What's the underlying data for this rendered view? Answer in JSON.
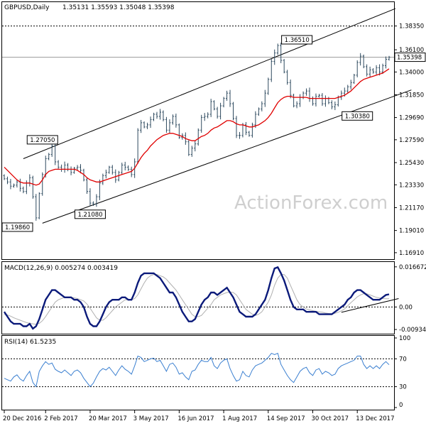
{
  "header": {
    "symbol": "GBPUSD,Daily",
    "ohlc": "1.35131 1.35593 1.35048 1.35398"
  },
  "watermark": "ActionForex.com",
  "chart_data": [
    {
      "type": "candlestick",
      "title": "GBPUSD,Daily",
      "y_ticks": [
        "1.38350",
        "1.36100",
        "1.34000",
        "1.31850",
        "1.29690",
        "1.27590",
        "1.25430",
        "1.23330",
        "1.21170",
        "1.19010",
        "1.16910"
      ],
      "ylim": [
        1.165,
        1.396
      ],
      "current_price": 1.35398,
      "current_price_label": "1.35398",
      "resistance_level": 1.3835,
      "resistance_label": "1.38350",
      "annotations": [
        {
          "label": "1.27050",
          "bar": 12,
          "price": 1.2705
        },
        {
          "label": "1.21080",
          "bar": 27,
          "price": 1.2108
        },
        {
          "label": "1.36510",
          "bar": 92,
          "price": 1.3651
        },
        {
          "label": "1.30380",
          "bar": 111,
          "price": 1.3038
        },
        {
          "label": "1.19860",
          "bar": 0,
          "price": 1.1986
        }
      ],
      "x_tick_labels": [
        "20 Dec 2016",
        "2 Feb 2017",
        "20 Mar 2017",
        "3 May 2017",
        "16 Jun 2017",
        "1 Aug 2017",
        "14 Sep 2017",
        "30 Oct 2017",
        "13 Dec 2017"
      ],
      "x_tick_bars": [
        0,
        13,
        27,
        41,
        55,
        69,
        83,
        97,
        111
      ],
      "closes": [
        1.239,
        1.236,
        1.232,
        1.233,
        1.236,
        1.23,
        1.227,
        1.235,
        1.24,
        1.222,
        1.202,
        1.225,
        1.243,
        1.258,
        1.262,
        1.27,
        1.255,
        1.25,
        1.248,
        1.252,
        1.248,
        1.245,
        1.249,
        1.25,
        1.247,
        1.238,
        1.227,
        1.216,
        1.215,
        1.222,
        1.235,
        1.242,
        1.245,
        1.25,
        1.245,
        1.238,
        1.245,
        1.252,
        1.25,
        1.248,
        1.243,
        1.255,
        1.285,
        1.292,
        1.288,
        1.29,
        1.295,
        1.3,
        1.298,
        1.302,
        1.295,
        1.285,
        1.292,
        1.298,
        1.29,
        1.278,
        1.28,
        1.274,
        1.262,
        1.268,
        1.272,
        1.285,
        1.297,
        1.298,
        1.3,
        1.312,
        1.305,
        1.298,
        1.308,
        1.315,
        1.32,
        1.31,
        1.296,
        1.28,
        1.28,
        1.29,
        1.283,
        1.28,
        1.29,
        1.3,
        1.305,
        1.31,
        1.32,
        1.333,
        1.35,
        1.358,
        1.365,
        1.351,
        1.34,
        1.33,
        1.318,
        1.308,
        1.31,
        1.316,
        1.32,
        1.322,
        1.315,
        1.31,
        1.317,
        1.318,
        1.31,
        1.315,
        1.311,
        1.307,
        1.309,
        1.316,
        1.32,
        1.322,
        1.326,
        1.33,
        1.337,
        1.349,
        1.355,
        1.345,
        1.338,
        1.342,
        1.34,
        1.344,
        1.34,
        1.346,
        1.352,
        1.35398
      ],
      "ma_values": [
        1.25,
        1.247,
        1.244,
        1.241,
        1.238,
        1.236,
        1.235,
        1.235,
        1.235,
        1.234,
        1.233,
        1.234,
        1.238,
        1.243,
        1.246,
        1.247,
        1.248,
        1.248,
        1.248,
        1.248,
        1.248,
        1.248,
        1.248,
        1.247,
        1.245,
        1.243,
        1.24,
        1.238,
        1.237,
        1.236,
        1.236,
        1.237,
        1.238,
        1.239,
        1.24,
        1.241,
        1.242,
        1.243,
        1.244,
        1.245,
        1.246,
        1.249,
        1.254,
        1.259,
        1.263,
        1.266,
        1.27,
        1.273,
        1.276,
        1.278,
        1.28,
        1.281,
        1.282,
        1.282,
        1.281,
        1.28,
        1.279,
        1.277,
        1.276,
        1.275,
        1.275,
        1.277,
        1.279,
        1.28,
        1.282,
        1.285,
        1.287,
        1.288,
        1.29,
        1.292,
        1.294,
        1.294,
        1.293,
        1.291,
        1.29,
        1.29,
        1.289,
        1.288,
        1.288,
        1.289,
        1.29,
        1.292,
        1.294,
        1.297,
        1.301,
        1.306,
        1.311,
        1.314,
        1.316,
        1.317,
        1.317,
        1.316,
        1.316,
        1.316,
        1.316,
        1.316,
        1.315,
        1.315,
        1.315,
        1.315,
        1.315,
        1.315,
        1.315,
        1.315,
        1.315,
        1.316,
        1.317,
        1.318,
        1.32,
        1.322,
        1.325,
        1.328,
        1.331,
        1.333,
        1.334,
        1.335,
        1.336,
        1.337,
        1.338,
        1.339,
        1.341,
        1.343
      ],
      "channel_upper": [
        [
          6,
          1.258
        ],
        [
          123,
          1.4
        ]
      ],
      "channel_lower": [
        [
          12,
          1.197
        ],
        [
          128,
          1.323
        ]
      ]
    },
    {
      "type": "line",
      "title": "MACD(12,26,9) 0.005274 0.003419",
      "y_ticks": [
        "0.016672",
        "0.00",
        "-0.009349"
      ],
      "ylim": [
        -0.0105,
        0.0178
      ],
      "macd": [
        -0.002,
        -0.004,
        -0.006,
        -0.007,
        -0.007,
        -0.007,
        -0.008,
        -0.008,
        -0.007,
        -0.009,
        -0.008,
        -0.005,
        -0.001,
        0.003,
        0.005,
        0.007,
        0.007,
        0.006,
        0.005,
        0.004,
        0.004,
        0.004,
        0.003,
        0.003,
        0.002,
        0.0,
        -0.004,
        -0.007,
        -0.008,
        -0.008,
        -0.006,
        -0.003,
        0.0,
        0.002,
        0.003,
        0.003,
        0.003,
        0.004,
        0.004,
        0.003,
        0.003,
        0.006,
        0.01,
        0.013,
        0.014,
        0.014,
        0.014,
        0.014,
        0.013,
        0.012,
        0.01,
        0.008,
        0.006,
        0.006,
        0.004,
        0.001,
        -0.002,
        -0.004,
        -0.006,
        -0.006,
        -0.005,
        -0.002,
        0.001,
        0.003,
        0.004,
        0.006,
        0.006,
        0.005,
        0.006,
        0.007,
        0.008,
        0.006,
        0.004,
        0.001,
        -0.002,
        -0.003,
        -0.004,
        -0.004,
        -0.004,
        -0.003,
        -0.001,
        0.001,
        0.003,
        0.007,
        0.012,
        0.016,
        0.0165,
        0.014,
        0.011,
        0.007,
        0.003,
        0.0,
        -0.001,
        -0.001,
        -0.001,
        -0.002,
        -0.002,
        -0.002,
        -0.002,
        -0.003,
        -0.003,
        -0.003,
        -0.003,
        -0.003,
        -0.002,
        -0.001,
        0.0,
        0.001,
        0.003,
        0.004,
        0.006,
        0.007,
        0.007,
        0.006,
        0.005,
        0.004,
        0.003,
        0.003,
        0.003,
        0.004,
        0.005,
        0.005274
      ],
      "signal": [
        -0.003,
        -0.0033,
        -0.0038,
        -0.0045,
        -0.005,
        -0.0055,
        -0.006,
        -0.0065,
        -0.0068,
        -0.007,
        -0.0072,
        -0.0068,
        -0.0057,
        -0.004,
        -0.002,
        0.0,
        0.002,
        0.003,
        0.0035,
        0.004,
        0.004,
        0.004,
        0.0038,
        0.0035,
        0.003,
        0.0025,
        0.0012,
        -0.0005,
        -0.0025,
        -0.0045,
        -0.0055,
        -0.0055,
        -0.0045,
        -0.003,
        -0.0015,
        0.0,
        0.001,
        0.002,
        0.003,
        0.003,
        0.003,
        0.0035,
        0.005,
        0.0075,
        0.01,
        0.012,
        0.013,
        0.0135,
        0.0135,
        0.013,
        0.0125,
        0.0115,
        0.01,
        0.0085,
        0.007,
        0.005,
        0.003,
        0.001,
        -0.001,
        -0.003,
        -0.004,
        -0.004,
        -0.0035,
        -0.002,
        -0.0005,
        0.001,
        0.003,
        0.004,
        0.005,
        0.0055,
        0.006,
        0.0062,
        0.006,
        0.005,
        0.003,
        0.001,
        -0.001,
        -0.002,
        -0.003,
        -0.0035,
        -0.003,
        -0.002,
        0.0,
        0.002,
        0.005,
        0.009,
        0.012,
        0.0135,
        0.0135,
        0.012,
        0.009,
        0.006,
        0.003,
        0.001,
        0.0,
        -0.0008,
        -0.0012,
        -0.0015,
        -0.0018,
        -0.002,
        -0.0022,
        -0.0025,
        -0.0027,
        -0.0028,
        -0.0026,
        -0.0022,
        -0.0016,
        -0.0008,
        0.0005,
        0.0018,
        0.003,
        0.0042,
        0.005,
        0.0055,
        0.0055,
        0.005,
        0.0045,
        0.004,
        0.0037,
        0.0035,
        0.0034,
        0.003419
      ],
      "trendline": [
        [
          106,
          -0.0022
        ],
        [
          124,
          0.0035
        ]
      ]
    },
    {
      "type": "line",
      "title": "RSI(14) 61.5235",
      "y_ticks": [
        "100",
        "70",
        "30",
        "0"
      ],
      "ylim": [
        0,
        100
      ],
      "levels": [
        70,
        30
      ],
      "rsi": [
        42,
        40,
        38,
        44,
        47,
        41,
        38,
        46,
        52,
        36,
        30,
        52,
        60,
        66,
        62,
        64,
        55,
        52,
        50,
        54,
        50,
        46,
        52,
        54,
        50,
        42,
        36,
        30,
        35,
        44,
        52,
        56,
        54,
        58,
        52,
        46,
        54,
        60,
        55,
        52,
        48,
        60,
        74,
        72,
        66,
        68,
        70,
        71,
        66,
        68,
        60,
        52,
        62,
        64,
        58,
        48,
        50,
        44,
        40,
        52,
        54,
        62,
        68,
        66,
        66,
        72,
        60,
        56,
        64,
        68,
        70,
        56,
        46,
        38,
        40,
        52,
        46,
        44,
        54,
        60,
        62,
        64,
        68,
        72,
        78,
        76,
        78,
        62,
        54,
        46,
        40,
        36,
        44,
        52,
        56,
        58,
        50,
        46,
        54,
        56,
        48,
        52,
        50,
        46,
        48,
        56,
        60,
        62,
        64,
        66,
        68,
        74,
        74,
        62,
        56,
        60,
        56,
        60,
        56,
        62,
        66,
        61.5235
      ]
    }
  ]
}
